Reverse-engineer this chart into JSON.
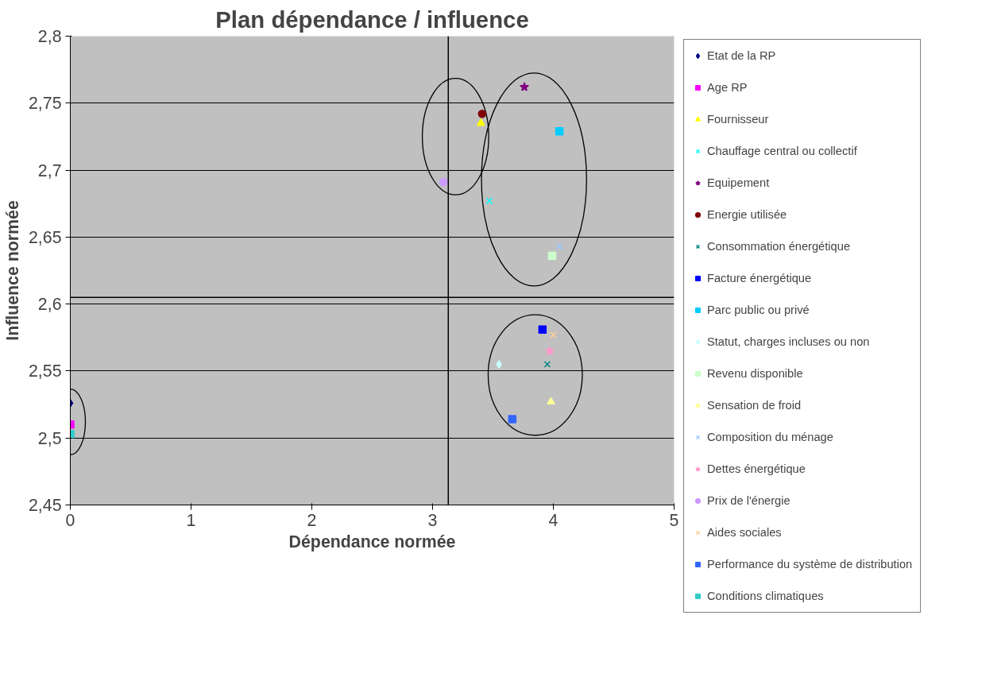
{
  "chart_data": {
    "type": "scatter",
    "title": "Plan dépendance / influence",
    "xlabel": "Dépendance normée",
    "ylabel": "Influence normée",
    "xlim": [
      0,
      5
    ],
    "xticks": [
      0,
      1,
      2,
      3,
      4,
      5
    ],
    "ylim": [
      2.45,
      2.8
    ],
    "yticks": [
      {
        "value": 2.45,
        "label": "2,45"
      },
      {
        "value": 2.5,
        "label": "2,5"
      },
      {
        "value": 2.55,
        "label": "2,55"
      },
      {
        "value": 2.6,
        "label": "2,6"
      },
      {
        "value": 2.65,
        "label": "2,65"
      },
      {
        "value": 2.7,
        "label": "2,7"
      },
      {
        "value": 2.75,
        "label": "2,75"
      },
      {
        "value": 2.8,
        "label": "2,8"
      }
    ],
    "grid": "y",
    "legend": "right",
    "ref_lines": [
      {
        "axis": "x",
        "value": 3.13,
        "color": "#000000"
      },
      {
        "axis": "y",
        "value": 2.605,
        "color": "#000000"
      }
    ],
    "series": [
      {
        "name": "Etat de la RP",
        "color": "#000080",
        "marker": "diamond",
        "x": [
          0
        ],
        "values": [
          2.526
        ]
      },
      {
        "name": "Age RP",
        "color": "#ff00ff",
        "marker": "square",
        "x": [
          0
        ],
        "values": [
          2.51
        ]
      },
      {
        "name": "Fournisseur",
        "color": "#ffff00",
        "marker": "triangle",
        "x": [
          3.4
        ],
        "values": [
          2.735
        ]
      },
      {
        "name": "Chauffage central ou collectif",
        "color": "#00ffff",
        "marker": "cross",
        "x": [
          3.47
        ],
        "values": [
          2.677
        ]
      },
      {
        "name": "Equipement",
        "color": "#800080",
        "marker": "star",
        "x": [
          3.76
        ],
        "values": [
          2.762
        ]
      },
      {
        "name": "Energie utilisée",
        "color": "#800000",
        "marker": "circle",
        "x": [
          3.41
        ],
        "values": [
          2.742
        ]
      },
      {
        "name": "Consommation énergétique",
        "color": "#008080",
        "marker": "cross",
        "x": [
          3.95
        ],
        "values": [
          2.555
        ]
      },
      {
        "name": "Facture énergétique",
        "color": "#0000ff",
        "marker": "square",
        "x": [
          3.91
        ],
        "values": [
          2.581
        ]
      },
      {
        "name": "Parc public ou privé",
        "color": "#00ccff",
        "marker": "square",
        "x": [
          4.05
        ],
        "values": [
          2.729
        ]
      },
      {
        "name": "Statut, charges incluses ou non",
        "color": "#ccffff",
        "marker": "diamond",
        "x": [
          3.55
        ],
        "values": [
          2.555
        ]
      },
      {
        "name": "Revenu disponible",
        "color": "#ccffcc",
        "marker": "square",
        "x": [
          3.99
        ],
        "values": [
          2.636
        ]
      },
      {
        "name": "Sensation de froid",
        "color": "#ffff99",
        "marker": "triangle",
        "x": [
          3.98
        ],
        "values": [
          2.527
        ]
      },
      {
        "name": "Composition du ménage",
        "color": "#99ccff",
        "marker": "cross",
        "x": [
          4.05
        ],
        "values": [
          2.643
        ]
      },
      {
        "name": "Dettes énergétique",
        "color": "#ff99cc",
        "marker": "star",
        "x": [
          3.97
        ],
        "values": [
          2.565
        ]
      },
      {
        "name": "Prix de l'énergie",
        "color": "#cc99ff",
        "marker": "circle",
        "x": [
          3.09
        ],
        "values": [
          2.691
        ]
      },
      {
        "name": "Aides sociales",
        "color": "#ffcc99",
        "marker": "cross",
        "x": [
          4.0
        ],
        "values": [
          2.577
        ]
      },
      {
        "name": "Performance du système de distribution",
        "color": "#3366ff",
        "marker": "square",
        "x": [
          3.66
        ],
        "values": [
          2.514
        ]
      },
      {
        "name": "Conditions climatiques",
        "color": "#33cccc",
        "marker": "square",
        "x": [
          0
        ],
        "values": [
          2.503
        ]
      }
    ]
  }
}
